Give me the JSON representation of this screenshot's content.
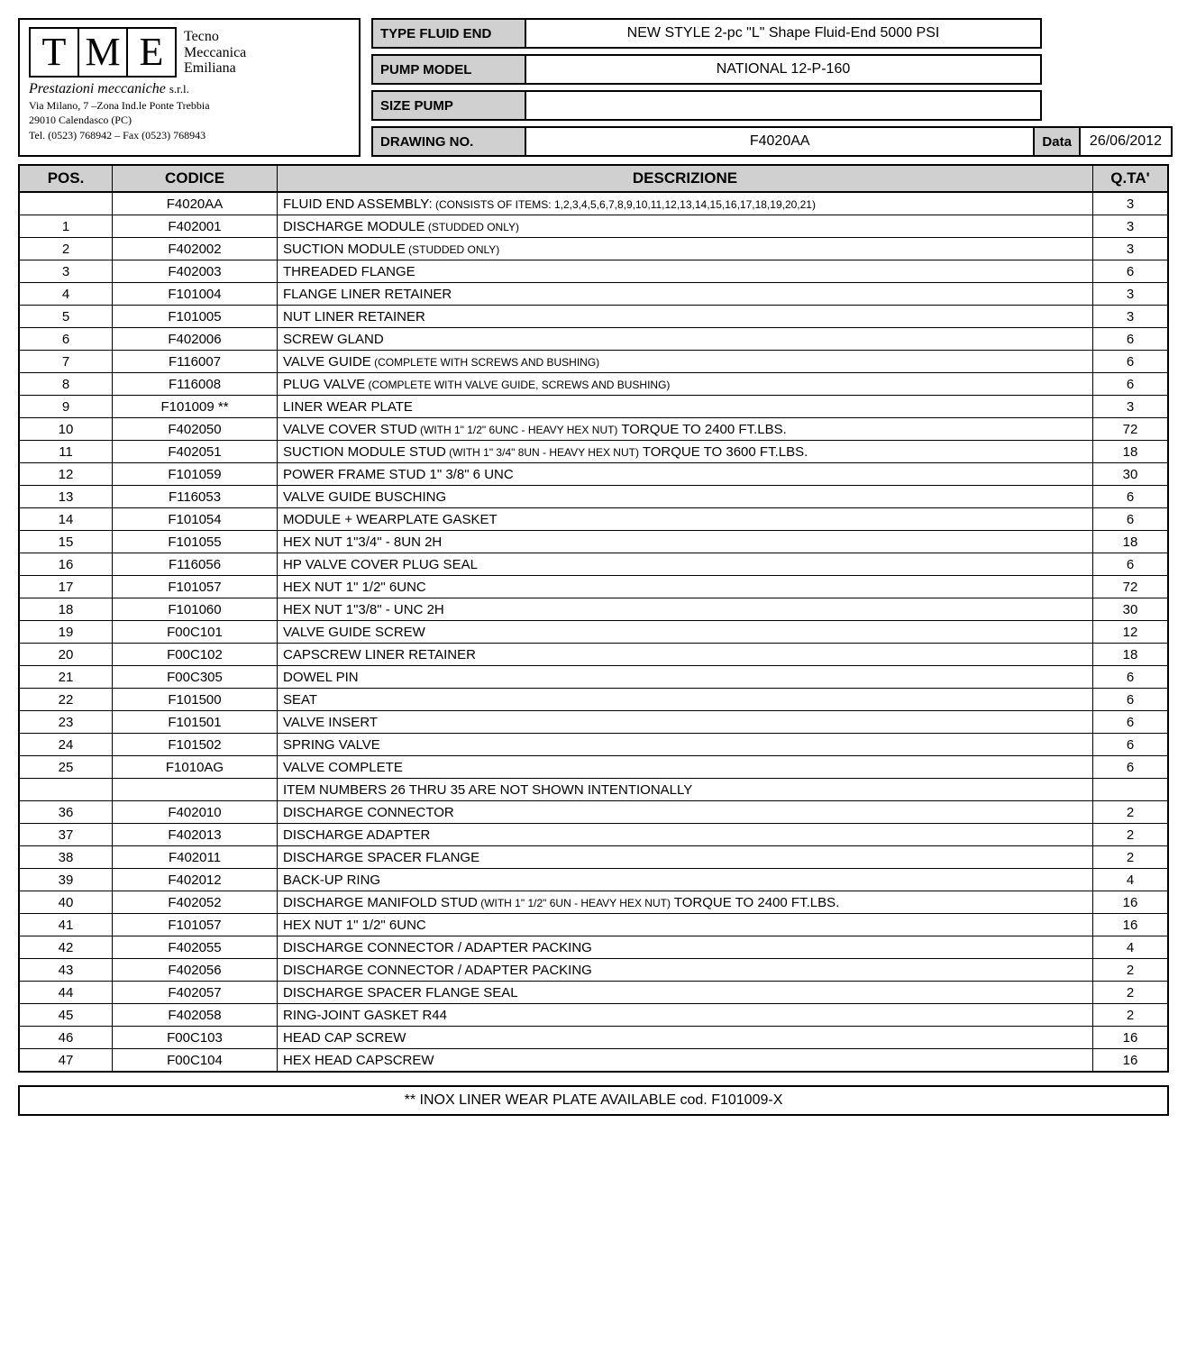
{
  "logo": {
    "letters": [
      "T",
      "M",
      "E"
    ],
    "company1": "Tecno",
    "company2": "Meccanica",
    "company3": "Emiliana",
    "srl": "s.r.l.",
    "prest": "Prestazioni meccaniche",
    "addr1": "Via Milano, 7 –Zona Ind.le Ponte Trebbia",
    "addr2": "29010 Calendasco (PC)",
    "addr3": "Tel. (0523) 768942 – Fax (0523) 768943"
  },
  "header": {
    "type_label": "TYPE FLUID END",
    "type_value": "NEW STYLE   2-pc \"L\" Shape Fluid-End    5000 PSI",
    "pump_label": "PUMP MODEL",
    "pump_value": "NATIONAL  12-P-160",
    "size_label": "SIZE PUMP",
    "size_value": "",
    "drawing_label": "DRAWING NO.",
    "drawing_value": "F4020AA",
    "data_label": "Data",
    "data_value": "26/06/2012"
  },
  "columns": {
    "pos": "POS.",
    "codice": "CODICE",
    "desc": "DESCRIZIONE",
    "qta": "Q.TA'"
  },
  "rows": [
    {
      "pos": "",
      "cod": "F4020AA",
      "desc": "FLUID END ASSEMBLY:",
      "sub": "(CONSISTS OF ITEMS: 1,2,3,4,5,6,7,8,9,10,11,12,13,14,15,16,17,18,19,20,21)",
      "qta": "3"
    },
    {
      "pos": "1",
      "cod": "F402001",
      "desc": "DISCHARGE MODULE",
      "sub": "(STUDDED ONLY)",
      "qta": "3"
    },
    {
      "pos": "2",
      "cod": "F402002",
      "desc": "SUCTION MODULE",
      "sub": "(STUDDED ONLY)",
      "qta": "3"
    },
    {
      "pos": "3",
      "cod": "F402003",
      "desc": "THREADED FLANGE",
      "sub": "",
      "qta": "6"
    },
    {
      "pos": "4",
      "cod": "F101004",
      "desc": "FLANGE LINER RETAINER",
      "sub": "",
      "qta": "3"
    },
    {
      "pos": "5",
      "cod": "F101005",
      "desc": "NUT LINER RETAINER",
      "sub": "",
      "qta": "3"
    },
    {
      "pos": "6",
      "cod": "F402006",
      "desc": "SCREW GLAND",
      "sub": "",
      "qta": "6"
    },
    {
      "pos": "7",
      "cod": "F116007",
      "desc": "VALVE GUIDE",
      "sub": "(COMPLETE WITH SCREWS AND BUSHING)",
      "qta": "6"
    },
    {
      "pos": "8",
      "cod": "F116008",
      "desc": "PLUG VALVE",
      "sub": "(COMPLETE WITH VALVE GUIDE, SCREWS AND BUSHING)",
      "qta": "6"
    },
    {
      "pos": "9",
      "cod": "F101009 **",
      "desc": "LINER WEAR PLATE",
      "sub": "",
      "qta": "3"
    },
    {
      "pos": "10",
      "cod": "F402050",
      "desc": "VALVE COVER STUD",
      "sub": "(WITH 1\" 1/2\"  6UNC - HEAVY HEX NUT)",
      "tail": " TORQUE TO 2400 FT.LBS.",
      "qta": "72"
    },
    {
      "pos": "11",
      "cod": "F402051",
      "desc": "SUCTION MODULE STUD",
      "sub": "(WITH 1\" 3/4\"  8UN - HEAVY HEX NUT)",
      "tail": " TORQUE TO 3600 FT.LBS.",
      "qta": "18"
    },
    {
      "pos": "12",
      "cod": "F101059",
      "desc": "POWER FRAME STUD 1\" 3/8\" 6 UNC",
      "sub": "",
      "qta": "30"
    },
    {
      "pos": "13",
      "cod": "F116053",
      "desc": "VALVE GUIDE BUSCHING",
      "sub": "",
      "qta": "6"
    },
    {
      "pos": "14",
      "cod": "F101054",
      "desc": "MODULE  + WEARPLATE GASKET",
      "sub": "",
      "qta": "6"
    },
    {
      "pos": "15",
      "cod": "F101055",
      "desc": "HEX NUT 1\"3/4\" -  8UN 2H",
      "sub": "",
      "qta": "18"
    },
    {
      "pos": "16",
      "cod": "F116056",
      "desc": "HP VALVE COVER PLUG SEAL",
      "sub": "",
      "qta": "6"
    },
    {
      "pos": "17",
      "cod": "F101057",
      "desc": "HEX NUT 1\" 1/2\" 6UNC",
      "sub": "",
      "qta": "72"
    },
    {
      "pos": "18",
      "cod": "F101060",
      "desc": "HEX NUT 1\"3/8\" - UNC 2H",
      "sub": "",
      "qta": "30"
    },
    {
      "pos": "19",
      "cod": "F00C101",
      "desc": "VALVE GUIDE SCREW",
      "sub": "",
      "qta": "12"
    },
    {
      "pos": "20",
      "cod": "F00C102",
      "desc": "CAPSCREW LINER RETAINER",
      "sub": "",
      "qta": "18"
    },
    {
      "pos": "21",
      "cod": "F00C305",
      "desc": "DOWEL PIN",
      "sub": "",
      "qta": "6"
    },
    {
      "pos": "22",
      "cod": "F101500",
      "desc": "SEAT",
      "sub": "",
      "qta": "6"
    },
    {
      "pos": "23",
      "cod": "F101501",
      "desc": "VALVE INSERT",
      "sub": "",
      "qta": "6"
    },
    {
      "pos": "24",
      "cod": "F101502",
      "desc": "SPRING VALVE",
      "sub": "",
      "qta": "6"
    },
    {
      "pos": "25",
      "cod": "F1010AG",
      "desc": "VALVE COMPLETE",
      "sub": "",
      "qta": "6"
    },
    {
      "pos": "",
      "cod": "",
      "desc": "ITEM NUMBERS 26 THRU 35 ARE NOT SHOWN INTENTIONALLY",
      "sub": "",
      "qta": ""
    },
    {
      "pos": "36",
      "cod": "F402010",
      "desc": "DISCHARGE CONNECTOR",
      "sub": "",
      "qta": "2"
    },
    {
      "pos": "37",
      "cod": "F402013",
      "desc": "DISCHARGE ADAPTER",
      "sub": "",
      "qta": "2"
    },
    {
      "pos": "38",
      "cod": "F402011",
      "desc": "DISCHARGE SPACER FLANGE",
      "sub": "",
      "qta": "2"
    },
    {
      "pos": "39",
      "cod": "F402012",
      "desc": "BACK-UP RING",
      "sub": "",
      "qta": "4"
    },
    {
      "pos": "40",
      "cod": "F402052",
      "desc": "DISCHARGE MANIFOLD STUD",
      "sub": "(WITH 1\" 1/2\"  6UN - HEAVY HEX NUT)",
      "tail": " TORQUE TO 2400 FT.LBS.",
      "qta": "16"
    },
    {
      "pos": "41",
      "cod": "F101057",
      "desc": "HEX NUT 1\" 1/2\" 6UNC",
      "sub": "",
      "qta": "16"
    },
    {
      "pos": "42",
      "cod": "F402055",
      "desc": "DISCHARGE CONNECTOR / ADAPTER PACKING",
      "sub": "",
      "qta": "4"
    },
    {
      "pos": "43",
      "cod": "F402056",
      "desc": "DISCHARGE CONNECTOR / ADAPTER PACKING",
      "sub": "",
      "qta": "2"
    },
    {
      "pos": "44",
      "cod": "F402057",
      "desc": "DISCHARGE SPACER FLANGE SEAL",
      "sub": "",
      "qta": "2"
    },
    {
      "pos": "45",
      "cod": "F402058",
      "desc": "RING-JOINT GASKET R44",
      "sub": "",
      "qta": "2"
    },
    {
      "pos": "46",
      "cod": "F00C103",
      "desc": "HEAD CAP SCREW",
      "sub": "",
      "qta": "16"
    },
    {
      "pos": "47",
      "cod": "F00C104",
      "desc": "HEX HEAD CAPSCREW",
      "sub": "",
      "qta": "16"
    }
  ],
  "footnote": "**  INOX LINER WEAR PLATE AVAILABLE  cod. F101009-X"
}
